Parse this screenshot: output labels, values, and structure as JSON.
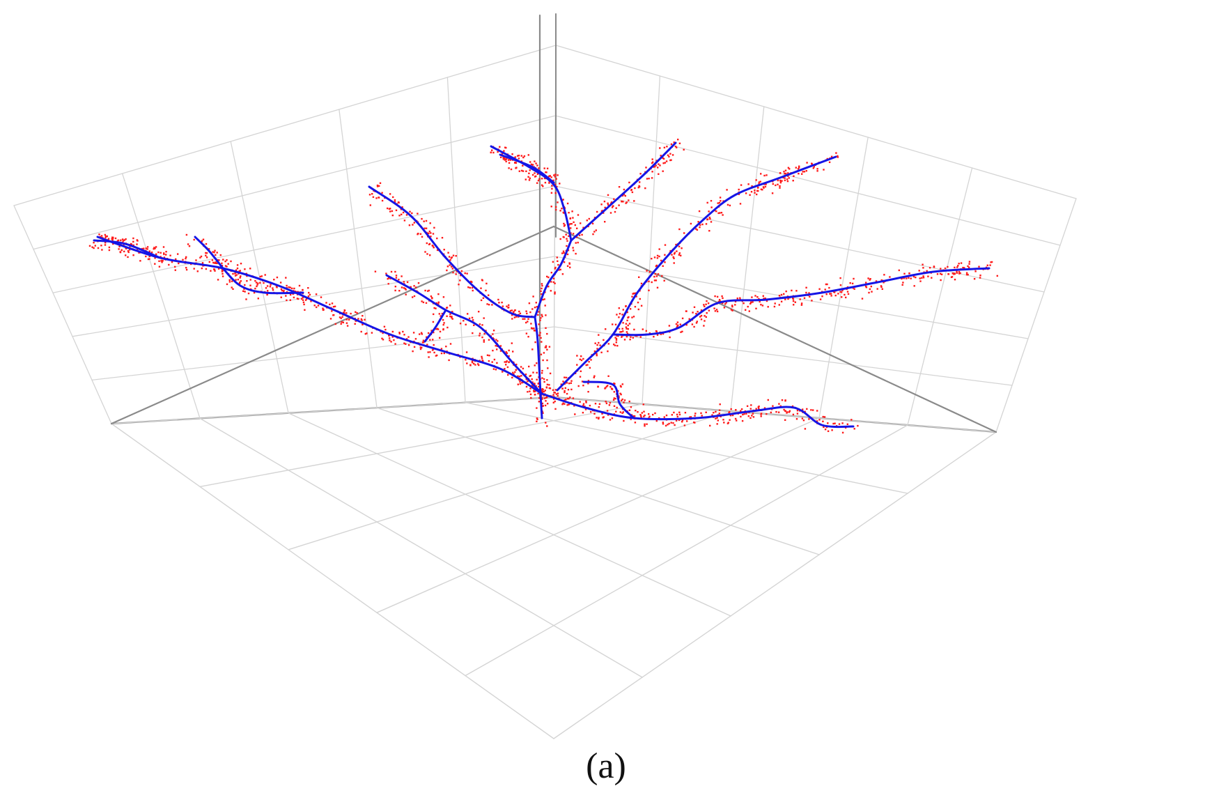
{
  "figure": {
    "caption": "(a)",
    "description_visible": false,
    "colors": {
      "skeleton_line": "#1515e6",
      "point_cloud": "#ff1a1a",
      "grid_line": "#d4d4d4",
      "axis_line": "#8a8a8a"
    },
    "elements": {
      "grid": "3d-wireframe-box",
      "skeleton": "blue-curves",
      "points": "red-scatter"
    }
  }
}
